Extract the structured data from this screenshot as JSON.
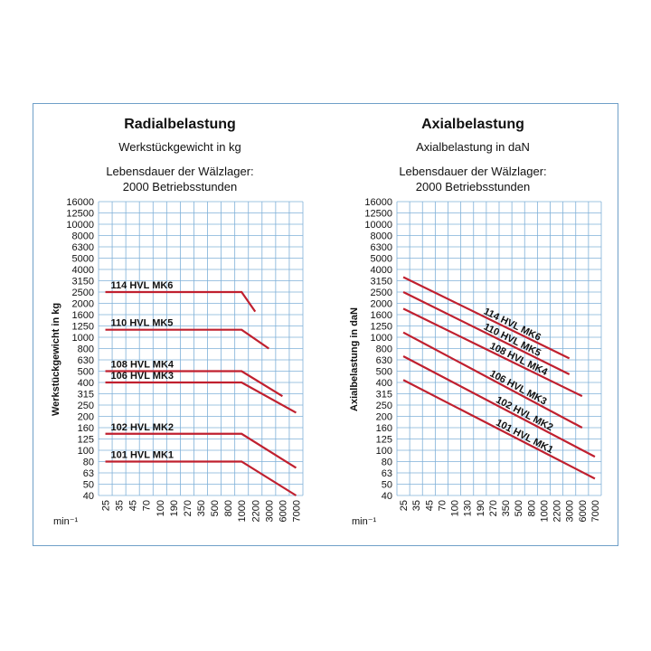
{
  "panels": [
    {
      "title": "Radialbelastung",
      "subtitle": "Werkstückgewicht in kg",
      "note_line1": "Lebensdauer der Wälzlager:",
      "note_line2": "2000 Betriebsstunden"
    },
    {
      "title": "Axialbelastung",
      "subtitle": "Axialbelastung in daN",
      "note_line1": "Lebensdauer der Wälzlager:",
      "note_line2": "2000 Betriebsstunden"
    }
  ],
  "colors": {
    "line": "#c0202f",
    "grid": "#7fb0d8",
    "frame": "#6f9fc8"
  },
  "chart_data": [
    {
      "type": "line",
      "title": "Radialbelastung",
      "ylabel": "Werkstückgewicht in kg",
      "xunit": "min⁻¹",
      "x_ticks": [
        "25",
        "35",
        "45",
        "70",
        "100",
        "190",
        "270",
        "350",
        "500",
        "800",
        "1000",
        "2200",
        "3000",
        "6000",
        "7000"
      ],
      "y_ticks": [
        "16000",
        "12500",
        "10000",
        "8000",
        "6300",
        "5000",
        "4000",
        "3150",
        "2500",
        "2000",
        "1600",
        "1250",
        "1000",
        "800",
        "630",
        "500",
        "400",
        "315",
        "250",
        "200",
        "160",
        "125",
        "100",
        "80",
        "63",
        "50",
        "40"
      ],
      "series": [
        {
          "name": "114 HVL MK6",
          "points": [
            [
              "25",
              2500
            ],
            [
              "1000",
              2500
            ],
            [
              "2200",
              1700
            ]
          ]
        },
        {
          "name": "110 HVL MK5",
          "points": [
            [
              "25",
              1160
            ],
            [
              "1000",
              1160
            ],
            [
              "3000",
              800
            ]
          ]
        },
        {
          "name": "108 HVL MK4",
          "points": [
            [
              "25",
              500
            ],
            [
              "1000",
              500
            ],
            [
              "6000",
              300
            ]
          ]
        },
        {
          "name": "106 HVL MK3",
          "points": [
            [
              "25",
              400
            ],
            [
              "1000",
              400
            ],
            [
              "7000",
              215
            ]
          ]
        },
        {
          "name": "102 HVL MK2",
          "points": [
            [
              "25",
              140
            ],
            [
              "1000",
              140
            ],
            [
              "7000",
              70
            ]
          ]
        },
        {
          "name": "101 HVL MK1",
          "points": [
            [
              "25",
              80
            ],
            [
              "1000",
              80
            ],
            [
              "7000",
              40
            ]
          ]
        }
      ],
      "grid": true
    },
    {
      "type": "line",
      "title": "Axialbelastung",
      "ylabel": "Axialbelastung in daN",
      "xunit": "min⁻¹",
      "x_ticks": [
        "25",
        "35",
        "45",
        "70",
        "100",
        "130",
        "190",
        "270",
        "350",
        "500",
        "800",
        "1000",
        "2200",
        "3000",
        "6000",
        "7000"
      ],
      "y_ticks": [
        "16000",
        "12500",
        "10000",
        "8000",
        "6300",
        "5000",
        "4000",
        "3150",
        "2500",
        "2000",
        "1600",
        "1250",
        "1000",
        "800",
        "630",
        "500",
        "400",
        "315",
        "250",
        "200",
        "160",
        "125",
        "100",
        "80",
        "63",
        "50",
        "40"
      ],
      "series": [
        {
          "name": "114 HVL MK6",
          "points": [
            [
              "25",
              3400
            ],
            [
              "3000",
              650
            ]
          ]
        },
        {
          "name": "110 HVL MK5",
          "points": [
            [
              "25",
              2500
            ],
            [
              "3000",
              470
            ]
          ]
        },
        {
          "name": "108 HVL MK4",
          "points": [
            [
              "25",
              1800
            ],
            [
              "6000",
              300
            ]
          ]
        },
        {
          "name": "106 HVL MK3",
          "points": [
            [
              "25",
              1100
            ],
            [
              "6000",
              160
            ]
          ]
        },
        {
          "name": "102 HVL MK2",
          "points": [
            [
              "25",
              680
            ],
            [
              "7000",
              88
            ]
          ]
        },
        {
          "name": "101 HVL MK1",
          "points": [
            [
              "25",
              420
            ],
            [
              "7000",
              56
            ]
          ]
        }
      ],
      "grid": true
    }
  ]
}
